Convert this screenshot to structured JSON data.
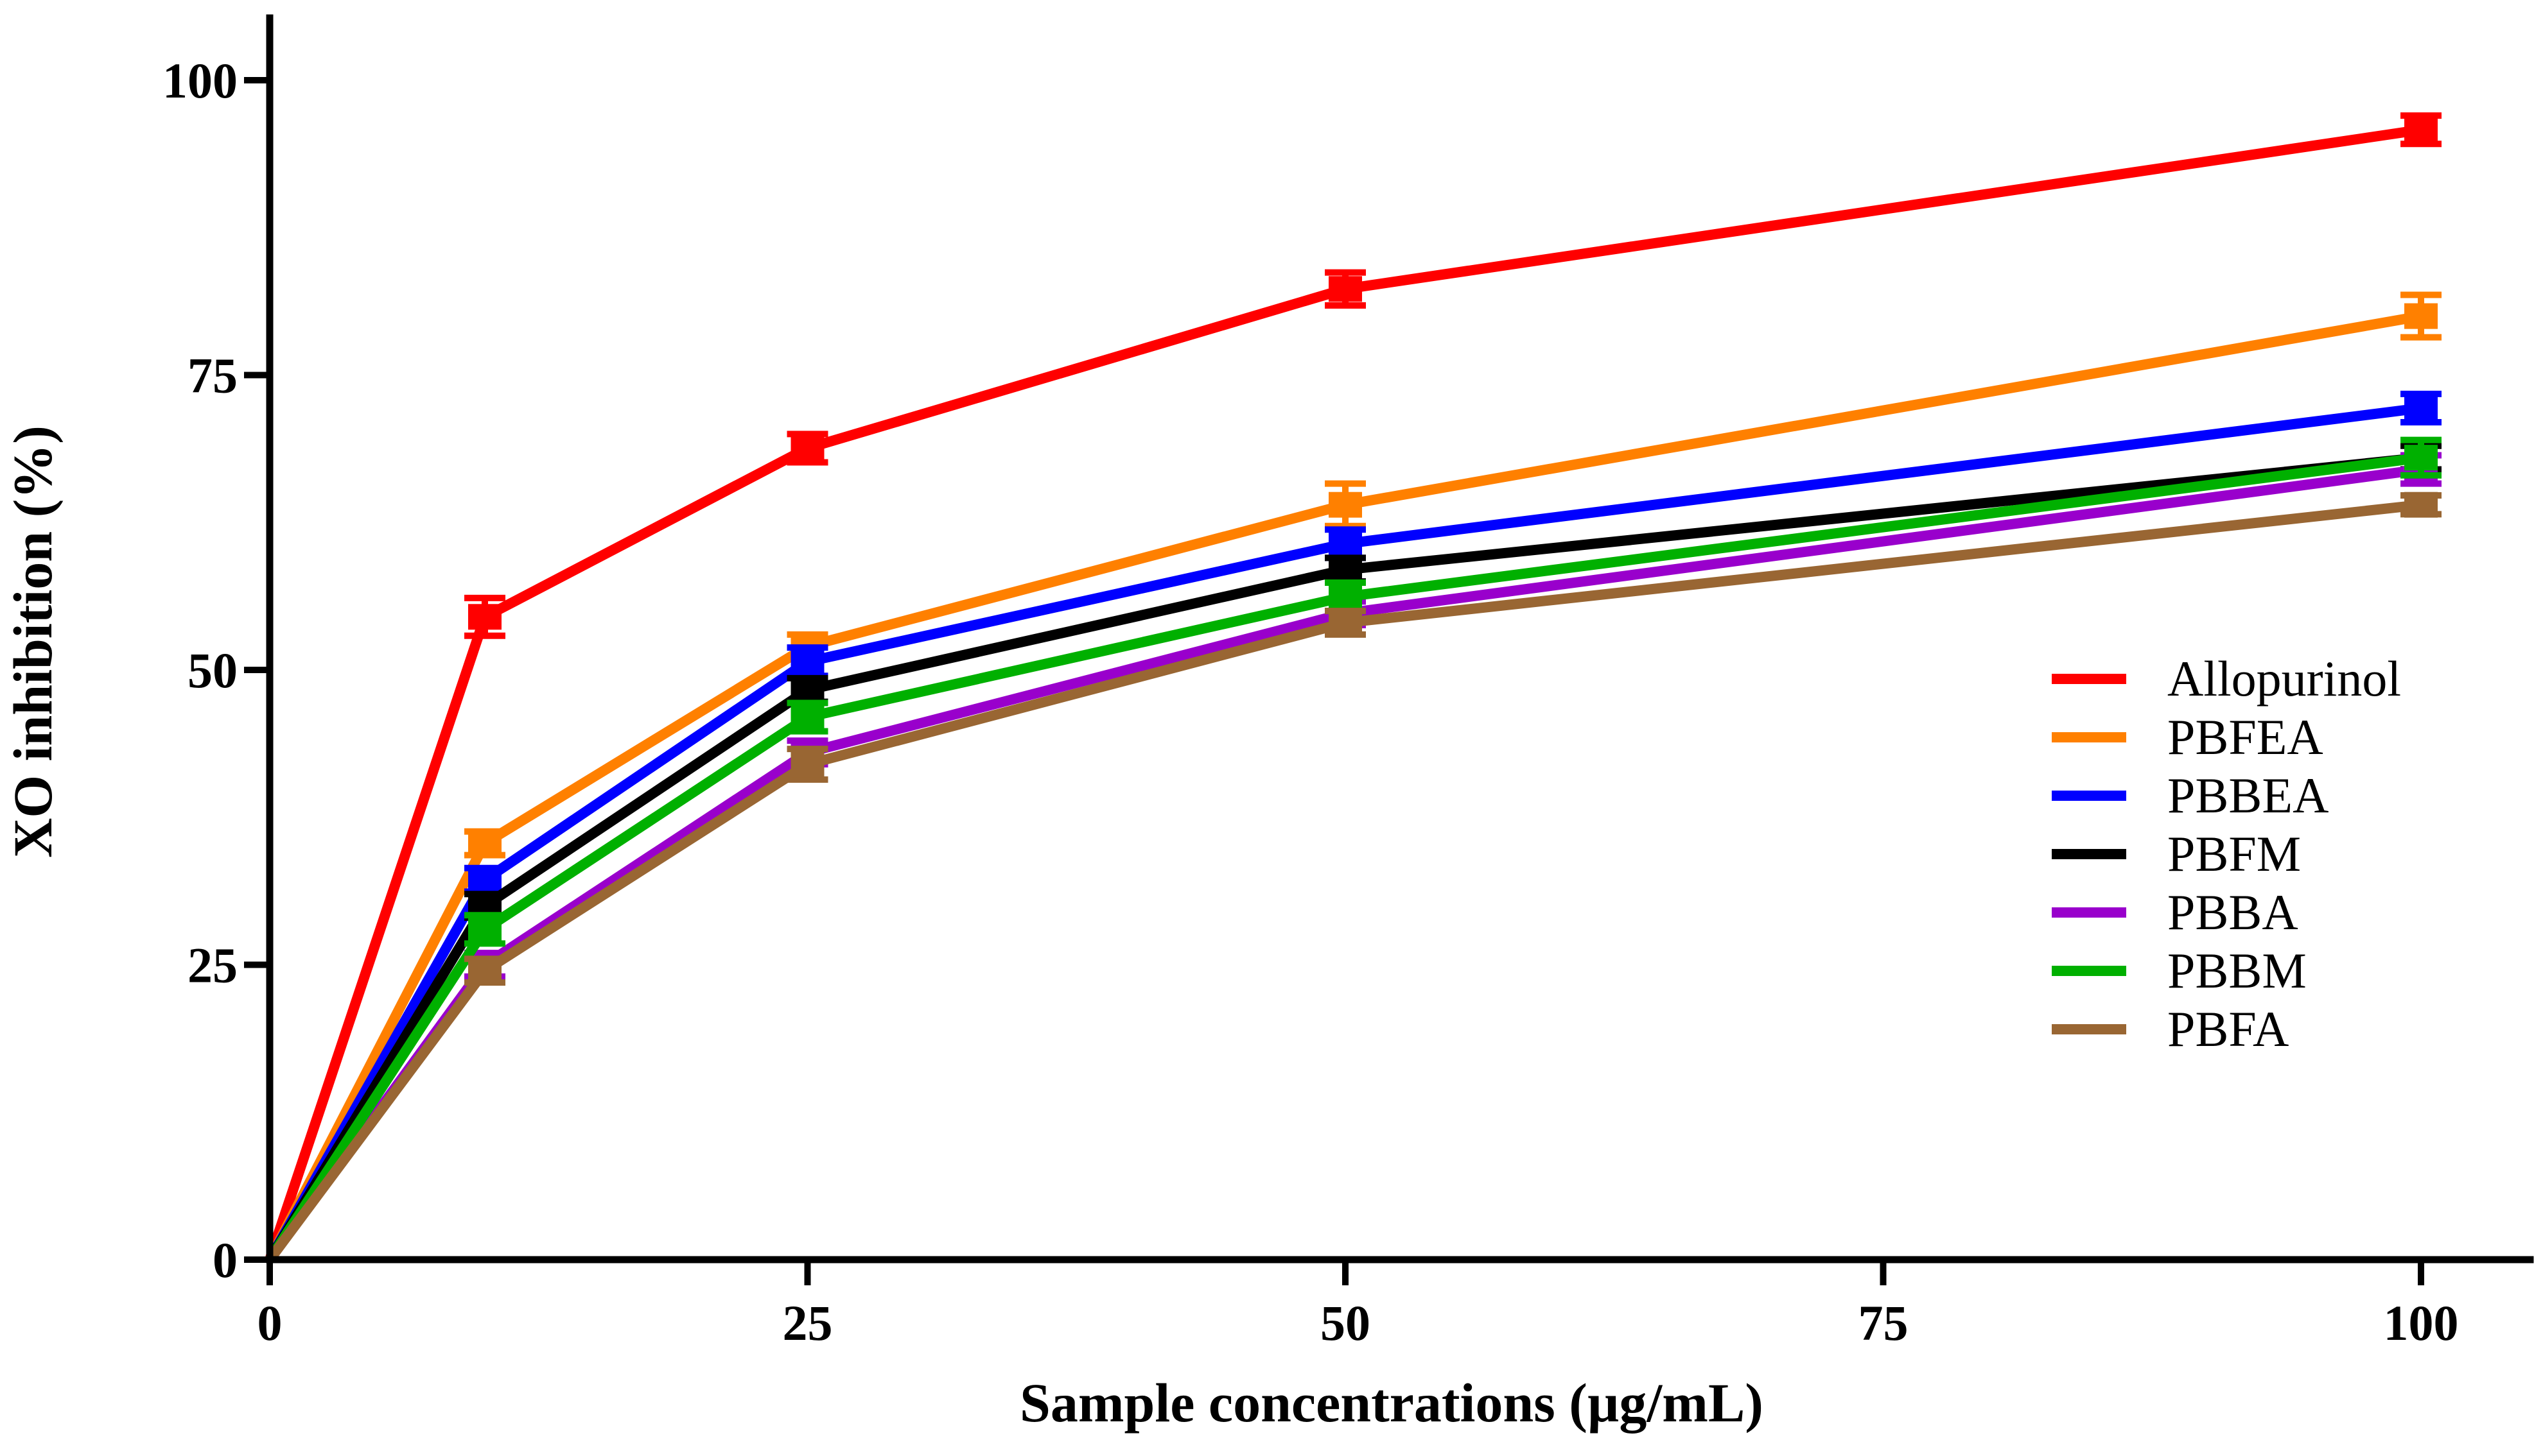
{
  "chart_data": {
    "type": "line",
    "xlabel": "Sample concentrations (µg/mL)",
    "ylabel": "XO inhibition  (%)",
    "xlim": [
      0,
      100
    ],
    "ylim": [
      0,
      100
    ],
    "xticks": [
      0,
      25,
      50,
      75,
      100
    ],
    "yticks": [
      0,
      25,
      50,
      75,
      100
    ],
    "xtick_labels": [
      "0",
      "25",
      "50",
      "75",
      "100"
    ],
    "ytick_labels": [
      "0",
      "25",
      "50",
      "75",
      "100"
    ],
    "x": [
      0,
      10,
      25,
      50,
      100
    ],
    "grid": false,
    "legend_position": "right",
    "error_bars": true,
    "series": [
      {
        "name": "Allopurinol",
        "color": "#ff0000",
        "values": [
          0,
          54.5,
          68.8,
          82.3,
          95.8
        ],
        "errors": [
          0,
          1.6,
          1.2,
          1.4,
          1.2
        ]
      },
      {
        "name": "PBFEA",
        "color": "#ff8000",
        "values": [
          0,
          35.3,
          52.0,
          64.0,
          80.0
        ],
        "errors": [
          0,
          1.0,
          1.0,
          1.8,
          1.8
        ]
      },
      {
        "name": "PBBEA",
        "color": "#0000ff",
        "values": [
          0,
          32.2,
          50.7,
          60.7,
          72.2
        ],
        "errors": [
          0,
          1.0,
          1.2,
          1.2,
          1.2
        ]
      },
      {
        "name": "PBFM",
        "color": "#000000",
        "values": [
          0,
          30.0,
          48.3,
          58.5,
          68.0
        ],
        "errors": [
          0,
          1.0,
          1.0,
          1.0,
          1.0
        ]
      },
      {
        "name": "PBBA",
        "color": "#9900cc",
        "values": [
          0,
          25.0,
          43.0,
          54.8,
          67.0
        ],
        "errors": [
          0,
          1.0,
          1.0,
          1.0,
          1.2
        ]
      },
      {
        "name": "PBBM",
        "color": "#00b000",
        "values": [
          0,
          28.0,
          46.0,
          56.2,
          68.0
        ],
        "errors": [
          0,
          1.2,
          1.2,
          1.2,
          1.5
        ]
      },
      {
        "name": "PBFA",
        "color": "#996633",
        "values": [
          0,
          24.5,
          42.0,
          54.0,
          64.0
        ],
        "errors": [
          0,
          1.0,
          1.3,
          1.0,
          0.8
        ]
      }
    ]
  }
}
